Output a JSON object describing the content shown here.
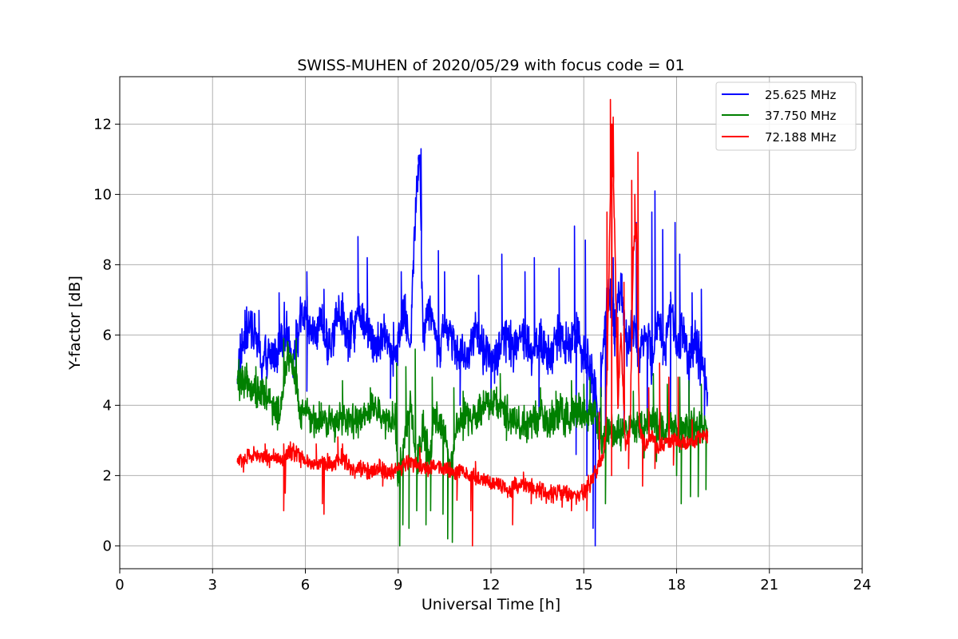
{
  "chart_data": {
    "type": "line",
    "title": "SWISS-MUHEN of 2020/05/29 with focus code = 01",
    "xlabel": "Universal Time [h]",
    "ylabel": "Y-factor [dB]",
    "xlim": [
      0,
      24
    ],
    "ylim": [
      -0.65,
      13.35
    ],
    "xticks": [
      0,
      3,
      6,
      9,
      12,
      15,
      18,
      21,
      24
    ],
    "yticks": [
      0,
      2,
      4,
      6,
      8,
      10,
      12
    ],
    "grid": true,
    "legend_position": "top-right",
    "series": [
      {
        "name": "25.625 MHz",
        "color": "#0000ff",
        "points": [
          [
            3.8,
            5.0
          ],
          [
            4.0,
            5.8
          ],
          [
            4.3,
            6.4
          ],
          [
            4.6,
            5.2
          ],
          [
            5.0,
            5.5
          ],
          [
            5.3,
            6.2
          ],
          [
            5.6,
            5.3
          ],
          [
            5.9,
            6.6
          ],
          [
            6.2,
            6.0
          ],
          [
            6.5,
            6.3
          ],
          [
            6.8,
            5.6
          ],
          [
            7.1,
            6.8
          ],
          [
            7.4,
            5.8
          ],
          [
            7.7,
            6.6
          ],
          [
            8.0,
            6.2
          ],
          [
            8.3,
            5.6
          ],
          [
            8.6,
            6.0
          ],
          [
            8.9,
            5.5
          ],
          [
            9.2,
            6.6
          ],
          [
            9.4,
            5.8
          ],
          [
            9.6,
            10.4
          ],
          [
            9.7,
            11.3
          ],
          [
            9.8,
            6.0
          ],
          [
            10.0,
            6.9
          ],
          [
            10.3,
            5.6
          ],
          [
            10.6,
            6.3
          ],
          [
            10.9,
            5.6
          ],
          [
            11.2,
            5.3
          ],
          [
            11.5,
            6.1
          ],
          [
            11.8,
            5.5
          ],
          [
            12.1,
            5.2
          ],
          [
            12.4,
            6.0
          ],
          [
            12.7,
            5.7
          ],
          [
            13.0,
            6.1
          ],
          [
            13.3,
            5.5
          ],
          [
            13.6,
            5.8
          ],
          [
            13.9,
            5.3
          ],
          [
            14.2,
            6.1
          ],
          [
            14.5,
            5.6
          ],
          [
            14.8,
            6.2
          ],
          [
            15.0,
            5.4
          ],
          [
            15.2,
            5.0
          ],
          [
            15.4,
            4.5
          ],
          [
            15.5,
            3.0
          ],
          [
            15.6,
            5.5
          ],
          [
            15.8,
            7.2
          ],
          [
            16.0,
            6.0
          ],
          [
            16.2,
            7.6
          ],
          [
            16.4,
            5.6
          ],
          [
            16.6,
            6.3
          ],
          [
            16.8,
            5.5
          ],
          [
            17.0,
            6.2
          ],
          [
            17.2,
            5.2
          ],
          [
            17.4,
            6.6
          ],
          [
            17.6,
            5.4
          ],
          [
            17.8,
            7.0
          ],
          [
            18.0,
            5.6
          ],
          [
            18.2,
            6.2
          ],
          [
            18.4,
            5.4
          ],
          [
            18.6,
            5.8
          ],
          [
            18.8,
            5.2
          ],
          [
            19.0,
            4.4
          ]
        ],
        "spikes": [
          [
            4.1,
            6.8
          ],
          [
            4.5,
            6.7
          ],
          [
            5.15,
            7.2
          ],
          [
            6.05,
            7.8
          ],
          [
            6.6,
            7.3
          ],
          [
            7.2,
            7.2
          ],
          [
            7.7,
            8.8
          ],
          [
            8.0,
            8.2
          ],
          [
            9.1,
            7.8
          ],
          [
            9.65,
            10.4
          ],
          [
            9.74,
            11.3
          ],
          [
            10.3,
            8.4
          ],
          [
            10.5,
            7.8
          ],
          [
            11.6,
            7.7
          ],
          [
            12.35,
            8.3
          ],
          [
            13.1,
            7.8
          ],
          [
            13.4,
            8.2
          ],
          [
            14.2,
            7.9
          ],
          [
            14.7,
            9.1
          ],
          [
            15.05,
            8.7
          ],
          [
            15.55,
            5.5
          ],
          [
            15.95,
            8.2
          ],
          [
            16.55,
            8.7
          ],
          [
            16.7,
            9.2
          ],
          [
            17.2,
            9.5
          ],
          [
            17.3,
            10.1
          ],
          [
            17.55,
            9.0
          ],
          [
            17.95,
            9.2
          ],
          [
            18.1,
            8.3
          ],
          [
            18.5,
            7.2
          ],
          [
            18.8,
            7.3
          ]
        ],
        "dips": [
          [
            6.05,
            4.4
          ],
          [
            8.75,
            4.2
          ],
          [
            11.0,
            4.0
          ],
          [
            12.0,
            4.0
          ],
          [
            13.55,
            3.8
          ],
          [
            14.75,
            2.6
          ],
          [
            15.1,
            2.0
          ],
          [
            15.3,
            0.5
          ],
          [
            15.37,
            0.0
          ],
          [
            15.7,
            2.8
          ],
          [
            16.3,
            3.5
          ],
          [
            17.05,
            3.5
          ],
          [
            17.8,
            3.4
          ],
          [
            18.4,
            3.8
          ],
          [
            18.9,
            3.6
          ]
        ]
      },
      {
        "name": "37.750 MHz",
        "color": "#008000",
        "points": [
          [
            3.8,
            4.6
          ],
          [
            4.0,
            4.7
          ],
          [
            4.3,
            4.5
          ],
          [
            4.6,
            4.3
          ],
          [
            4.9,
            4.1
          ],
          [
            5.2,
            3.7
          ],
          [
            5.4,
            5.4
          ],
          [
            5.6,
            5.2
          ],
          [
            5.8,
            3.8
          ],
          [
            6.2,
            3.6
          ],
          [
            6.6,
            3.5
          ],
          [
            7.0,
            3.5
          ],
          [
            7.4,
            3.6
          ],
          [
            7.8,
            3.5
          ],
          [
            8.2,
            3.9
          ],
          [
            8.6,
            3.6
          ],
          [
            8.9,
            3.6
          ],
          [
            9.0,
            1.8
          ],
          [
            9.2,
            3.0
          ],
          [
            9.4,
            4.1
          ],
          [
            9.6,
            2.3
          ],
          [
            9.8,
            3.4
          ],
          [
            10.0,
            2.6
          ],
          [
            10.2,
            3.7
          ],
          [
            10.5,
            3.2
          ],
          [
            10.7,
            2.0
          ],
          [
            10.9,
            3.5
          ],
          [
            11.2,
            3.7
          ],
          [
            11.5,
            3.6
          ],
          [
            11.8,
            3.9
          ],
          [
            12.1,
            4.1
          ],
          [
            12.4,
            3.9
          ],
          [
            12.7,
            3.6
          ],
          [
            13.0,
            3.5
          ],
          [
            13.3,
            3.5
          ],
          [
            13.6,
            3.7
          ],
          [
            13.9,
            3.5
          ],
          [
            14.2,
            3.8
          ],
          [
            14.5,
            3.6
          ],
          [
            14.8,
            3.9
          ],
          [
            15.1,
            3.7
          ],
          [
            15.4,
            3.8
          ],
          [
            15.6,
            2.8
          ],
          [
            15.8,
            3.4
          ],
          [
            16.0,
            3.2
          ],
          [
            16.3,
            3.4
          ],
          [
            16.6,
            3.3
          ],
          [
            16.9,
            3.4
          ],
          [
            17.2,
            3.6
          ],
          [
            17.5,
            3.2
          ],
          [
            17.8,
            3.5
          ],
          [
            18.1,
            3.2
          ],
          [
            18.4,
            3.3
          ],
          [
            18.7,
            3.4
          ],
          [
            19.0,
            3.3
          ]
        ],
        "spikes": [
          [
            3.85,
            5.3
          ],
          [
            4.1,
            5.2
          ],
          [
            4.4,
            5.1
          ],
          [
            5.3,
            5.9
          ],
          [
            5.7,
            5.9
          ],
          [
            7.2,
            4.7
          ],
          [
            8.1,
            4.5
          ],
          [
            8.95,
            5.2
          ],
          [
            9.25,
            5.1
          ],
          [
            9.55,
            5.6
          ],
          [
            10.1,
            4.8
          ],
          [
            10.8,
            4.5
          ],
          [
            11.1,
            4.4
          ],
          [
            12.3,
            4.9
          ],
          [
            13.6,
            4.5
          ],
          [
            14.1,
            4.4
          ],
          [
            14.6,
            4.7
          ],
          [
            15.0,
            4.6
          ],
          [
            15.2,
            4.8
          ],
          [
            15.55,
            4.5
          ],
          [
            16.6,
            4.4
          ],
          [
            17.25,
            4.9
          ],
          [
            17.7,
            4.6
          ],
          [
            18.1,
            4.8
          ],
          [
            18.4,
            4.7
          ],
          [
            18.8,
            4.6
          ]
        ],
        "dips": [
          [
            5.1,
            3.3
          ],
          [
            9.05,
            0.0
          ],
          [
            9.15,
            0.6
          ],
          [
            9.35,
            0.5
          ],
          [
            9.6,
            1.0
          ],
          [
            9.9,
            0.6
          ],
          [
            10.05,
            1.0
          ],
          [
            10.45,
            0.9
          ],
          [
            10.6,
            0.2
          ],
          [
            10.75,
            0.1
          ],
          [
            11.1,
            3.0
          ],
          [
            12.5,
            3.0
          ],
          [
            13.5,
            3.1
          ],
          [
            14.4,
            3.1
          ],
          [
            15.7,
            1.2
          ],
          [
            16.2,
            2.7
          ],
          [
            16.95,
            2.5
          ],
          [
            17.35,
            2.4
          ],
          [
            18.0,
            2.0
          ],
          [
            18.15,
            1.2
          ],
          [
            18.45,
            1.4
          ],
          [
            18.7,
            1.4
          ],
          [
            18.95,
            1.6
          ]
        ]
      },
      {
        "name": "72.188 MHz",
        "color": "#ff0000",
        "points": [
          [
            3.8,
            2.4
          ],
          [
            4.1,
            2.5
          ],
          [
            4.4,
            2.6
          ],
          [
            4.7,
            2.5
          ],
          [
            5.0,
            2.5
          ],
          [
            5.3,
            2.4
          ],
          [
            5.5,
            2.7
          ],
          [
            5.7,
            2.6
          ],
          [
            6.0,
            2.4
          ],
          [
            6.3,
            2.3
          ],
          [
            6.6,
            2.4
          ],
          [
            6.9,
            2.3
          ],
          [
            7.2,
            2.5
          ],
          [
            7.5,
            2.2
          ],
          [
            7.8,
            2.2
          ],
          [
            8.1,
            2.1
          ],
          [
            8.4,
            2.2
          ],
          [
            8.7,
            2.1
          ],
          [
            9.0,
            2.2
          ],
          [
            9.3,
            2.4
          ],
          [
            9.6,
            2.3
          ],
          [
            9.9,
            2.2
          ],
          [
            10.2,
            2.3
          ],
          [
            10.5,
            2.2
          ],
          [
            10.8,
            2.1
          ],
          [
            11.1,
            2.1
          ],
          [
            11.4,
            2.0
          ],
          [
            11.7,
            1.9
          ],
          [
            12.0,
            1.8
          ],
          [
            12.3,
            1.8
          ],
          [
            12.6,
            1.6
          ],
          [
            12.9,
            1.8
          ],
          [
            13.2,
            1.7
          ],
          [
            13.5,
            1.6
          ],
          [
            13.8,
            1.5
          ],
          [
            14.1,
            1.5
          ],
          [
            14.4,
            1.5
          ],
          [
            14.7,
            1.4
          ],
          [
            15.0,
            1.5
          ],
          [
            15.2,
            1.8
          ],
          [
            15.4,
            2.1
          ],
          [
            15.6,
            2.5
          ],
          [
            15.7,
            3.0
          ],
          [
            15.8,
            7.0
          ],
          [
            15.9,
            12.0
          ],
          [
            16.0,
            9.0
          ],
          [
            16.1,
            4.0
          ],
          [
            16.2,
            6.0
          ],
          [
            16.35,
            2.8
          ],
          [
            16.5,
            3.3
          ],
          [
            16.6,
            8.5
          ],
          [
            16.7,
            9.0
          ],
          [
            16.8,
            3.3
          ],
          [
            17.0,
            2.9
          ],
          [
            17.2,
            3.2
          ],
          [
            17.4,
            2.8
          ],
          [
            17.6,
            2.9
          ],
          [
            17.8,
            3.0
          ],
          [
            18.0,
            3.0
          ],
          [
            18.3,
            2.9
          ],
          [
            18.6,
            3.0
          ],
          [
            19.0,
            3.2
          ]
        ],
        "spikes": [
          [
            4.7,
            2.9
          ],
          [
            5.3,
            2.9
          ],
          [
            6.35,
            2.9
          ],
          [
            7.05,
            3.1
          ],
          [
            7.2,
            2.9
          ],
          [
            9.7,
            2.8
          ],
          [
            11.5,
            2.4
          ],
          [
            13.05,
            2.1
          ],
          [
            15.5,
            3.8
          ],
          [
            15.75,
            9.5
          ],
          [
            15.86,
            12.7
          ],
          [
            15.95,
            12.2
          ],
          [
            16.1,
            6.5
          ],
          [
            16.3,
            7.5
          ],
          [
            16.55,
            10.4
          ],
          [
            16.65,
            10.0
          ],
          [
            16.75,
            11.2
          ],
          [
            17.1,
            4.5
          ],
          [
            17.45,
            5.2
          ],
          [
            17.75,
            4.8
          ],
          [
            18.05,
            4.8
          ],
          [
            18.5,
            3.6
          ]
        ],
        "dips": [
          [
            4.0,
            2.1
          ],
          [
            5.3,
            1.0
          ],
          [
            5.35,
            1.5
          ],
          [
            6.55,
            1.2
          ],
          [
            6.6,
            0.9
          ],
          [
            8.5,
            1.7
          ],
          [
            10.9,
            1.3
          ],
          [
            11.35,
            1.0
          ],
          [
            11.4,
            0.0
          ],
          [
            12.7,
            0.6
          ],
          [
            13.3,
            1.2
          ],
          [
            14.3,
            1.1
          ],
          [
            14.6,
            1.0
          ],
          [
            15.1,
            1.0
          ],
          [
            15.9,
            2.0
          ],
          [
            16.45,
            2.2
          ],
          [
            16.9,
            1.7
          ],
          [
            17.3,
            2.2
          ],
          [
            17.9,
            2.3
          ]
        ]
      }
    ]
  }
}
